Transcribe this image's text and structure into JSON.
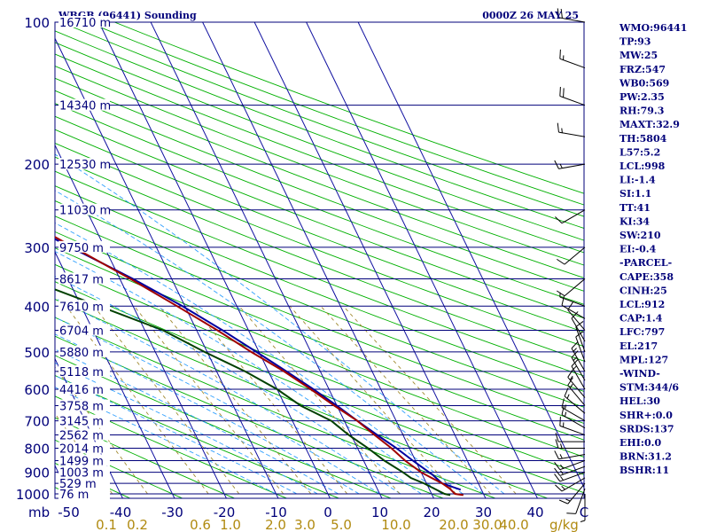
{
  "header": {
    "station": "WBGB (96441) Sounding",
    "time": "0000Z 26 MAY 25"
  },
  "chart_data": {
    "type": "skew-t",
    "pressure_ticks": [
      100,
      200,
      300,
      400,
      500,
      600,
      700,
      800,
      900,
      1000
    ],
    "temp_ticks": [
      -50,
      -40,
      -30,
      -20,
      -10,
      0,
      10,
      20,
      30,
      40
    ],
    "x_unit_label": "mb",
    "x_end_label": "C",
    "mixing_ratio_ticks": [
      {
        "value": "0.1",
        "x": 120
      },
      {
        "value": "0.2",
        "x": 155
      },
      {
        "value": "0.6",
        "x": 226
      },
      {
        "value": "1.0",
        "x": 260
      },
      {
        "value": "2.0",
        "x": 311
      },
      {
        "value": "3.0",
        "x": 344
      },
      {
        "value": "5.0",
        "x": 385
      },
      {
        "value": "10.0",
        "x": 447
      },
      {
        "value": "20.0",
        "x": 512
      },
      {
        "value": "30.0",
        "x": 550
      },
      {
        "value": "40.0",
        "x": 580
      }
    ],
    "mixing_ratio_unit": "g/kg",
    "height_labels": [
      {
        "p": 100,
        "label": "16710 m"
      },
      {
        "p": 150,
        "label": "14340 m"
      },
      {
        "p": 200,
        "label": "12530 m"
      },
      {
        "p": 250,
        "label": "11030 m"
      },
      {
        "p": 300,
        "label": "9750 m"
      },
      {
        "p": 350,
        "label": "8617 m"
      },
      {
        "p": 400,
        "label": "7610 m"
      },
      {
        "p": 450,
        "label": "6704 m"
      },
      {
        "p": 500,
        "label": "5880 m"
      },
      {
        "p": 550,
        "label": "5118 m"
      },
      {
        "p": 600,
        "label": "4416 m"
      },
      {
        "p": 650,
        "label": "3758 m"
      },
      {
        "p": 700,
        "label": "3145 m"
      },
      {
        "p": 750,
        "label": "2562 m"
      },
      {
        "p": 800,
        "label": "2014 m"
      },
      {
        "p": 850,
        "label": "1499 m"
      },
      {
        "p": 900,
        "label": "1003 m"
      },
      {
        "p": 950,
        "label": "529 m"
      },
      {
        "p": 1000,
        "label": "76 m"
      }
    ],
    "temperature_profile": [
      {
        "p": 1006,
        "t": 26.0
      },
      {
        "p": 1000,
        "t": 24.5
      },
      {
        "p": 975,
        "t": 24.0
      },
      {
        "p": 950,
        "t": 23.0
      },
      {
        "p": 925,
        "t": 21.5
      },
      {
        "p": 900,
        "t": 20.0
      },
      {
        "p": 850,
        "t": 18.0
      },
      {
        "p": 800,
        "t": 16.5
      },
      {
        "p": 750,
        "t": 14.5
      },
      {
        "p": 700,
        "t": 12.5
      },
      {
        "p": 650,
        "t": 9.5
      },
      {
        "p": 600,
        "t": 6.5
      },
      {
        "p": 550,
        "t": 3.0
      },
      {
        "p": 500,
        "t": -1.5
      },
      {
        "p": 450,
        "t": -6.0
      },
      {
        "p": 400,
        "t": -11.5
      },
      {
        "p": 350,
        "t": -18.0
      },
      {
        "p": 300,
        "t": -26.0
      },
      {
        "p": 250,
        "t": -35.5
      },
      {
        "p": 200,
        "t": -47.5
      },
      {
        "p": 150,
        "t": -61.0
      },
      {
        "p": 125,
        "t": -69.0
      },
      {
        "p": 100,
        "t": -79.5
      }
    ],
    "dewpoint_profile": [
      {
        "p": 1006,
        "t": 23.5
      },
      {
        "p": 1000,
        "t": 22.5
      },
      {
        "p": 950,
        "t": 19.5
      },
      {
        "p": 925,
        "t": 17.5
      },
      {
        "p": 900,
        "t": 16.5
      },
      {
        "p": 850,
        "t": 14.0
      },
      {
        "p": 800,
        "t": 12.0
      },
      {
        "p": 750,
        "t": 9.5
      },
      {
        "p": 700,
        "t": 7.5
      },
      {
        "p": 650,
        "t": 3.0
      },
      {
        "p": 600,
        "t": 0.0
      },
      {
        "p": 550,
        "t": -4.5
      },
      {
        "p": 500,
        "t": -10.5
      },
      {
        "p": 450,
        "t": -16.5
      },
      {
        "p": 400,
        "t": -26.5
      },
      {
        "p": 350,
        "t": -38.0
      },
      {
        "p": 300,
        "t": -52.0
      },
      {
        "p": 250,
        "t": -66.0
      },
      {
        "p": 200,
        "t": -71.0
      },
      {
        "p": 170,
        "t": -80.0
      },
      {
        "p": 150,
        "t": -84.0
      },
      {
        "p": 125,
        "t": -86.0
      },
      {
        "p": 100,
        "t": -92.0
      }
    ],
    "parcel_profile": [
      {
        "p": 980,
        "t": 26.0
      },
      {
        "p": 950,
        "t": 23.0
      },
      {
        "p": 912,
        "t": 22.0
      },
      {
        "p": 850,
        "t": 19.5
      },
      {
        "p": 800,
        "t": 17.5
      },
      {
        "p": 750,
        "t": 15.0
      },
      {
        "p": 700,
        "t": 12.5
      },
      {
        "p": 650,
        "t": 10.0
      },
      {
        "p": 600,
        "t": 7.0
      },
      {
        "p": 550,
        "t": 3.5
      },
      {
        "p": 500,
        "t": -0.5
      },
      {
        "p": 450,
        "t": -5.0
      },
      {
        "p": 400,
        "t": -10.5
      },
      {
        "p": 350,
        "t": -17.5
      },
      {
        "p": 300,
        "t": -26.5
      },
      {
        "p": 250,
        "t": -37.0
      },
      {
        "p": 217,
        "t": -45.0
      },
      {
        "p": 200,
        "t": -50.0
      },
      {
        "p": 150,
        "t": -66.0
      },
      {
        "p": 127,
        "t": -74.5
      },
      {
        "p": 100,
        "t": -88.0
      }
    ],
    "wind_barbs": [
      {
        "p": 1000,
        "dir": 180,
        "spd": 5
      },
      {
        "p": 975,
        "dir": 200,
        "spd": 10
      },
      {
        "p": 950,
        "dir": 220,
        "spd": 15
      },
      {
        "p": 925,
        "dir": 240,
        "spd": 15
      },
      {
        "p": 900,
        "dir": 250,
        "spd": 15
      },
      {
        "p": 875,
        "dir": 250,
        "spd": 15
      },
      {
        "p": 850,
        "dir": 250,
        "spd": 15
      },
      {
        "p": 825,
        "dir": 260,
        "spd": 15
      },
      {
        "p": 800,
        "dir": 270,
        "spd": 15
      },
      {
        "p": 775,
        "dir": 270,
        "spd": 10
      },
      {
        "p": 750,
        "dir": 290,
        "spd": 15
      },
      {
        "p": 725,
        "dir": 300,
        "spd": 15
      },
      {
        "p": 700,
        "dir": 300,
        "spd": 15
      },
      {
        "p": 675,
        "dir": 310,
        "spd": 15
      },
      {
        "p": 650,
        "dir": 320,
        "spd": 15
      },
      {
        "p": 625,
        "dir": 320,
        "spd": 15
      },
      {
        "p": 600,
        "dir": 330,
        "spd": 15
      },
      {
        "p": 575,
        "dir": 330,
        "spd": 15
      },
      {
        "p": 550,
        "dir": 330,
        "spd": 15
      },
      {
        "p": 525,
        "dir": 340,
        "spd": 10
      },
      {
        "p": 500,
        "dir": 340,
        "spd": 10
      },
      {
        "p": 475,
        "dir": 330,
        "spd": 10
      },
      {
        "p": 450,
        "dir": 320,
        "spd": 10
      },
      {
        "p": 425,
        "dir": 300,
        "spd": 10
      },
      {
        "p": 400,
        "dir": 290,
        "spd": 5
      },
      {
        "p": 350,
        "dir": 230,
        "spd": 10
      },
      {
        "p": 300,
        "dir": 230,
        "spd": 10
      },
      {
        "p": 250,
        "dir": 240,
        "spd": 10
      },
      {
        "p": 200,
        "dir": 260,
        "spd": 15
      },
      {
        "p": 175,
        "dir": 280,
        "spd": 15
      },
      {
        "p": 150,
        "dir": 290,
        "spd": 20
      },
      {
        "p": 125,
        "dir": 290,
        "spd": 15
      },
      {
        "p": 100,
        "dir": 280,
        "spd": 20
      }
    ]
  },
  "indices": [
    "WMO:96441",
    "TP:93",
    "MW:25",
    "FRZ:547",
    "WB0:569",
    "PW:2.35",
    "RH:79.3",
    "MAXT:32.9",
    "TH:5804",
    "L57:5.2",
    "LCL:998",
    "LI:-1.4",
    "SI:1.1",
    "TT:41",
    "KI:34",
    "SW:210",
    "EI:-0.4",
    "-PARCEL-",
    "CAPE:358",
    "CINH:25",
    "LCL:912",
    "CAP:1.4",
    "LFC:797",
    "EL:217",
    "MPL:127",
    "-WIND-",
    "STM:344/6",
    "HEL:30",
    "SHR+:0.0",
    "SRDS:137",
    "EHI:0.0",
    "BRN:31.2",
    "BSHR:11"
  ],
  "colors": {
    "isobar": "#00007a",
    "isotherm": "#1010a0",
    "dry_adiabat": "#00b000",
    "moist_adiabat": "#30a0ff",
    "mixing_ratio": "#a08a30",
    "temperature": "#a00000",
    "dewpoint": "#004000",
    "parcel": "#0000a0"
  }
}
